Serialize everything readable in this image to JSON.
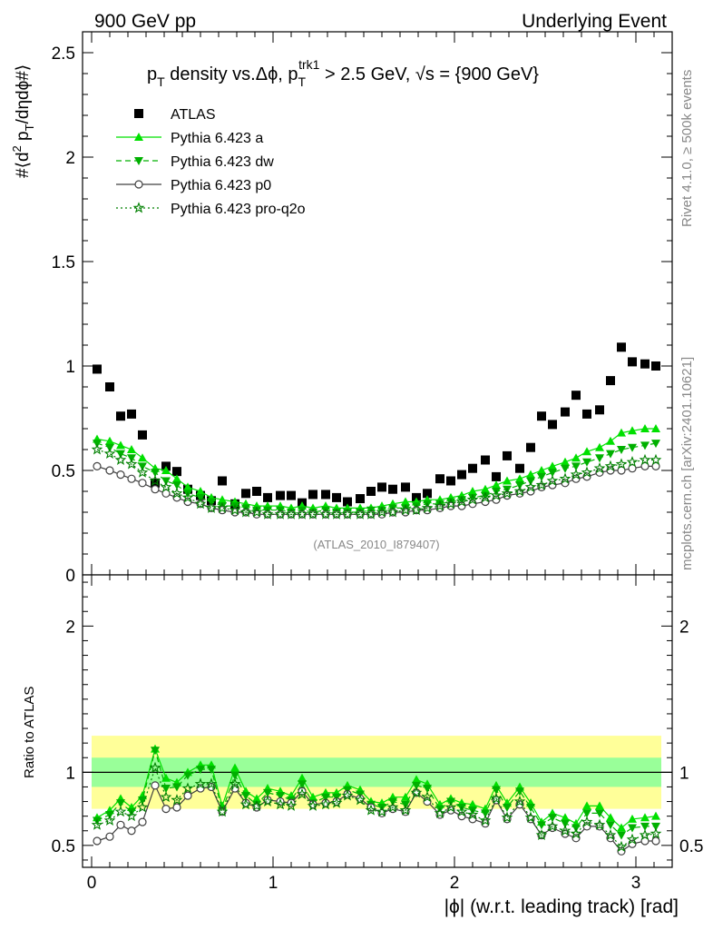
{
  "header": {
    "left": "900 GeV pp",
    "right": "Underlying Event"
  },
  "side_labels": {
    "rivet": "Rivet 4.1.0, ≥ 500k events",
    "mcplots": "mcplots.cern.ch [arXiv:2401.10621]"
  },
  "watermark": "(ATLAS_2010_I879407)",
  "colors": {
    "atlas": "#000000",
    "pythia_a": "#00e000",
    "pythia_dw": "#00b000",
    "pythia_p0": "#404040",
    "pythia_pq2o": "#008000",
    "band_outer": "#ffff99",
    "band_inner": "#99ff99"
  },
  "chart_data": [
    {
      "type": "scatter",
      "title": "p_T density vs. Δϕ, p_T^trk1 > 2.5 GeV, √s = {900 GeV}",
      "xlabel": "|ϕ| (w.r.t. leading track) [rad]",
      "ylabel": "#⟨d² p_T/dηdϕ#⟩",
      "xlim": [
        -0.05,
        3.2
      ],
      "ylim": [
        0,
        2.6
      ],
      "yticks": [
        0.5,
        1,
        1.5,
        2,
        2.5
      ],
      "xticks": [
        0,
        1,
        2,
        3
      ],
      "x": [
        0.03,
        0.1,
        0.16,
        0.22,
        0.28,
        0.35,
        0.41,
        0.47,
        0.53,
        0.6,
        0.66,
        0.72,
        0.79,
        0.85,
        0.91,
        0.97,
        1.04,
        1.1,
        1.16,
        1.22,
        1.29,
        1.35,
        1.41,
        1.48,
        1.54,
        1.6,
        1.66,
        1.73,
        1.79,
        1.85,
        1.92,
        1.98,
        2.04,
        2.1,
        2.17,
        2.23,
        2.29,
        2.36,
        2.42,
        2.48,
        2.54,
        2.61,
        2.67,
        2.73,
        2.8,
        2.86,
        2.92,
        2.98,
        3.05,
        3.11
      ],
      "series": [
        {
          "name": "ATLAS",
          "marker": "square",
          "values": [
            0.985,
            0.9,
            0.76,
            0.77,
            0.67,
            0.44,
            0.52,
            0.495,
            0.41,
            0.38,
            0.355,
            0.45,
            0.34,
            0.39,
            0.4,
            0.37,
            0.38,
            0.38,
            0.345,
            0.385,
            0.385,
            0.37,
            0.35,
            0.365,
            0.4,
            0.42,
            0.41,
            0.42,
            0.37,
            0.39,
            0.46,
            0.45,
            0.48,
            0.51,
            0.55,
            0.47,
            0.57,
            0.51,
            0.61,
            0.76,
            0.72,
            0.78,
            0.86,
            0.77,
            0.79,
            0.93,
            1.09,
            1.02,
            1.01,
            1.0
          ]
        },
        {
          "name": "Pythia 6.423 a",
          "marker": "triangle-up",
          "values": [
            0.65,
            0.64,
            0.62,
            0.6,
            0.56,
            0.51,
            0.5,
            0.46,
            0.42,
            0.4,
            0.37,
            0.36,
            0.35,
            0.34,
            0.33,
            0.33,
            0.33,
            0.32,
            0.33,
            0.32,
            0.33,
            0.32,
            0.32,
            0.32,
            0.32,
            0.33,
            0.34,
            0.35,
            0.35,
            0.36,
            0.36,
            0.37,
            0.38,
            0.4,
            0.41,
            0.43,
            0.45,
            0.46,
            0.48,
            0.5,
            0.52,
            0.54,
            0.56,
            0.59,
            0.61,
            0.64,
            0.68,
            0.69,
            0.7,
            0.7
          ]
        },
        {
          "name": "Pythia 6.423 dw",
          "marker": "triangle-down",
          "values": [
            0.63,
            0.61,
            0.58,
            0.56,
            0.52,
            0.49,
            0.45,
            0.43,
            0.39,
            0.37,
            0.35,
            0.33,
            0.33,
            0.32,
            0.31,
            0.31,
            0.31,
            0.3,
            0.31,
            0.3,
            0.31,
            0.3,
            0.3,
            0.3,
            0.31,
            0.31,
            0.32,
            0.32,
            0.33,
            0.34,
            0.34,
            0.35,
            0.36,
            0.37,
            0.38,
            0.4,
            0.41,
            0.43,
            0.45,
            0.47,
            0.49,
            0.51,
            0.52,
            0.54,
            0.56,
            0.58,
            0.6,
            0.61,
            0.62,
            0.63
          ]
        },
        {
          "name": "Pythia 6.423 p0",
          "marker": "circle-open",
          "values": [
            0.52,
            0.5,
            0.48,
            0.46,
            0.44,
            0.41,
            0.39,
            0.37,
            0.35,
            0.34,
            0.32,
            0.31,
            0.3,
            0.3,
            0.29,
            0.29,
            0.29,
            0.29,
            0.29,
            0.29,
            0.29,
            0.29,
            0.29,
            0.29,
            0.29,
            0.29,
            0.3,
            0.3,
            0.31,
            0.31,
            0.32,
            0.33,
            0.33,
            0.34,
            0.35,
            0.36,
            0.38,
            0.39,
            0.4,
            0.42,
            0.43,
            0.44,
            0.46,
            0.47,
            0.49,
            0.5,
            0.5,
            0.51,
            0.52,
            0.52
          ]
        },
        {
          "name": "Pythia 6.423 pro-q2o",
          "marker": "star",
          "values": [
            0.6,
            0.58,
            0.55,
            0.53,
            0.49,
            0.45,
            0.42,
            0.39,
            0.37,
            0.34,
            0.32,
            0.32,
            0.31,
            0.3,
            0.3,
            0.29,
            0.29,
            0.29,
            0.29,
            0.29,
            0.29,
            0.29,
            0.29,
            0.29,
            0.29,
            0.3,
            0.3,
            0.31,
            0.31,
            0.32,
            0.33,
            0.34,
            0.35,
            0.36,
            0.37,
            0.38,
            0.39,
            0.4,
            0.42,
            0.43,
            0.45,
            0.46,
            0.48,
            0.49,
            0.51,
            0.52,
            0.53,
            0.54,
            0.55,
            0.55
          ]
        }
      ]
    },
    {
      "type": "scatter",
      "title": "",
      "xlabel": "|ϕ| (w.r.t. leading track) [rad]",
      "ylabel": "Ratio to ATLAS",
      "xlim": [
        -0.05,
        3.2
      ],
      "ylim": [
        0.35,
        2.35
      ],
      "yticks": [
        0.5,
        1,
        2
      ],
      "xticks": [
        0,
        1,
        2,
        3
      ],
      "reference_line": 1,
      "bands": {
        "outer": [
          0.75,
          1.25
        ],
        "inner": [
          0.9,
          1.1
        ]
      },
      "series": [
        {
          "name": "Pythia 6.423 a",
          "marker": "triangle-up",
          "values": [
            0.69,
            0.74,
            0.82,
            0.76,
            0.84,
            1.16,
            0.96,
            0.93,
            1.0,
            1.05,
            1.05,
            0.77,
            1.03,
            0.87,
            0.82,
            0.89,
            0.87,
            0.84,
            0.96,
            0.83,
            0.86,
            0.86,
            0.91,
            0.88,
            0.8,
            0.79,
            0.83,
            0.83,
            0.95,
            0.92,
            0.78,
            0.82,
            0.79,
            0.78,
            0.75,
            0.91,
            0.79,
            0.9,
            0.79,
            0.66,
            0.72,
            0.69,
            0.65,
            0.77,
            0.77,
            0.69,
            0.62,
            0.68,
            0.69,
            0.7
          ]
        },
        {
          "name": "Pythia 6.423 dw",
          "marker": "triangle-down",
          "values": [
            0.67,
            0.71,
            0.79,
            0.73,
            0.81,
            1.15,
            0.89,
            0.9,
            0.98,
            1.02,
            1.02,
            0.74,
            0.98,
            0.84,
            0.78,
            0.86,
            0.84,
            0.81,
            0.92,
            0.79,
            0.83,
            0.83,
            0.88,
            0.85,
            0.78,
            0.76,
            0.8,
            0.78,
            0.91,
            0.89,
            0.75,
            0.8,
            0.76,
            0.74,
            0.72,
            0.88,
            0.76,
            0.87,
            0.76,
            0.64,
            0.69,
            0.65,
            0.62,
            0.72,
            0.72,
            0.64,
            0.57,
            0.62,
            0.63,
            0.63
          ]
        },
        {
          "name": "Pythia 6.423 p0",
          "marker": "circle-open",
          "values": [
            0.53,
            0.56,
            0.64,
            0.6,
            0.66,
            0.91,
            0.75,
            0.76,
            0.84,
            0.89,
            0.9,
            0.73,
            0.89,
            0.79,
            0.76,
            0.81,
            0.8,
            0.79,
            0.87,
            0.78,
            0.79,
            0.8,
            0.85,
            0.82,
            0.76,
            0.72,
            0.75,
            0.73,
            0.86,
            0.8,
            0.71,
            0.74,
            0.7,
            0.68,
            0.65,
            0.81,
            0.68,
            0.78,
            0.68,
            0.57,
            0.62,
            0.58,
            0.55,
            0.63,
            0.63,
            0.55,
            0.46,
            0.51,
            0.53,
            0.53
          ]
        },
        {
          "name": "Pythia 6.423 pro-q2o",
          "marker": "star",
          "values": [
            0.64,
            0.67,
            0.73,
            0.7,
            0.76,
            1.03,
            0.83,
            0.81,
            0.89,
            0.92,
            0.92,
            0.73,
            0.92,
            0.78,
            0.77,
            0.8,
            0.78,
            0.77,
            0.85,
            0.77,
            0.78,
            0.79,
            0.84,
            0.81,
            0.74,
            0.73,
            0.76,
            0.74,
            0.86,
            0.83,
            0.72,
            0.76,
            0.73,
            0.71,
            0.67,
            0.82,
            0.69,
            0.8,
            0.69,
            0.57,
            0.63,
            0.6,
            0.58,
            0.66,
            0.64,
            0.57,
            0.49,
            0.54,
            0.57,
            0.58
          ]
        }
      ]
    }
  ]
}
